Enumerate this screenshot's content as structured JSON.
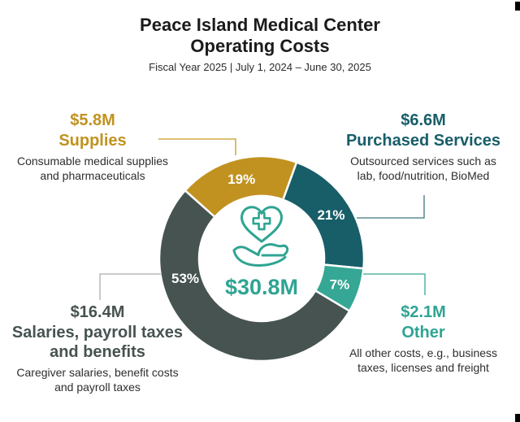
{
  "page": {
    "title_line1": "Peace Island Medical Center",
    "title_line2": "Operating Costs",
    "subtitle": "Fiscal Year 2025 | July 1, 2024 – June 30, 2025"
  },
  "center": {
    "icon": "heart-in-hand-icon",
    "accent_color": "#2FA492"
  },
  "chart_data": {
    "type": "pie",
    "donut": true,
    "title": "Peace Island Medical Center Operating Costs",
    "subtitle": "Fiscal Year 2025 | July 1, 2024 – June 30, 2025",
    "total_label": "$30.8M",
    "total_value_millions": 30.8,
    "units": "USD millions",
    "legend_position": "callouts-around-chart",
    "segments": [
      {
        "label": "Supplies",
        "amount": "$5.8M",
        "value_millions": 5.8,
        "percent": 19,
        "percent_label": "19%",
        "color": "#C19220",
        "description": "Consumable medical supplies and pharmaceuticals"
      },
      {
        "label": "Purchased Services",
        "amount": "$6.6M",
        "value_millions": 6.6,
        "percent": 21,
        "percent_label": "21%",
        "color": "#175E69",
        "description": "Outsourced services such as lab, food/nutrition, BioMed"
      },
      {
        "label": "Other",
        "amount": "$2.1M",
        "value_millions": 2.1,
        "percent": 7,
        "percent_label": "7%",
        "color": "#35A794",
        "description": "All other costs, e.g., business taxes, licenses and freight"
      },
      {
        "label": "Salaries, payroll taxes and benefits",
        "amount": "$16.4M",
        "value_millions": 16.4,
        "percent": 53,
        "percent_label": "53%",
        "color": "#465351",
        "description": "Caregiver salaries, benefit costs and payroll taxes"
      }
    ]
  }
}
